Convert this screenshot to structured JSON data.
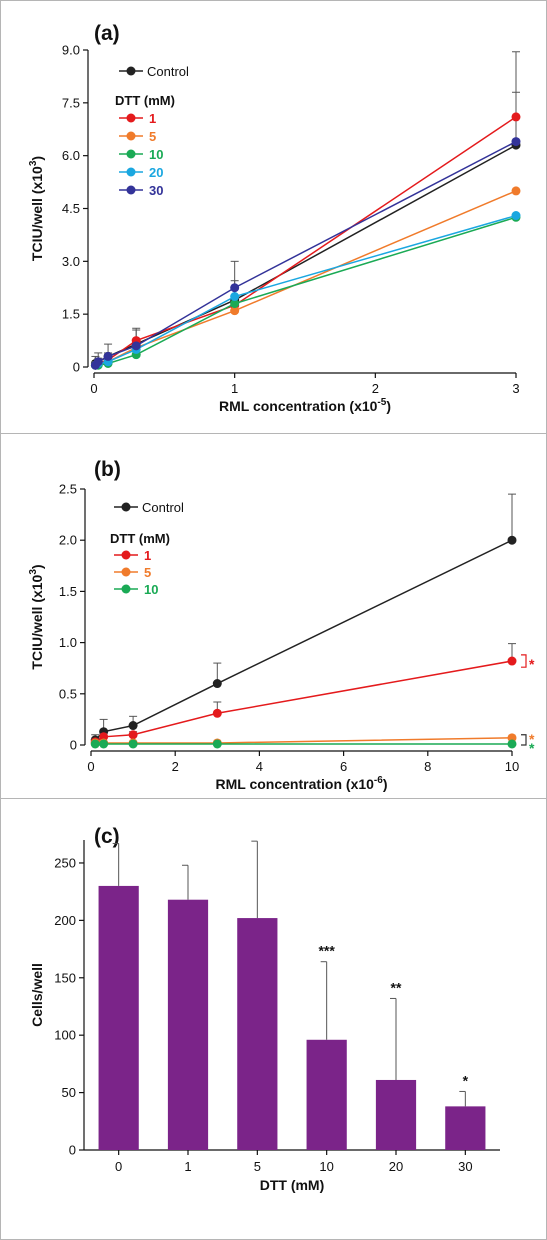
{
  "chart_data": [
    {
      "type": "line",
      "panel_label": "(a)",
      "xlabel": "RML concentration (x10",
      "xlabel_sup": "-5",
      "xlabel_end": ")",
      "ylabel": "TCIU/well (x10",
      "ylabel_sup": "3",
      "ylabel_end": ")",
      "xlim": [
        0,
        3
      ],
      "ylim": [
        0,
        9
      ],
      "xticks": [
        0,
        1,
        2,
        3
      ],
      "xtick_labels": [
        "0",
        "1",
        "2",
        "3"
      ],
      "yticks": [
        0,
        1.5,
        3,
        4.5,
        6,
        7.5,
        9
      ],
      "ytick_labels": [
        "0",
        "1.5",
        "3.0",
        "4.5",
        "6.0",
        "7.5",
        "9.0"
      ],
      "legend_heading": "DTT (mM)",
      "legend_placement": "top-left",
      "x": [
        0.01,
        0.03,
        0.1,
        0.3,
        1,
        3
      ],
      "series": [
        {
          "name": "Control",
          "color": "#222222",
          "label_color": "#111111",
          "values": [
            0.1,
            0.15,
            0.3,
            0.65,
            1.9,
            6.3
          ],
          "err": [
            0.2,
            0.25,
            0.35,
            0.45,
            1.1,
            2.65
          ]
        },
        {
          "name": "1",
          "color": "#e41a1c",
          "label_color": "#e41a1c",
          "values": [
            0.05,
            0.1,
            0.2,
            0.75,
            1.75,
            7.1
          ],
          "err": [
            0.1,
            0.15,
            0.2,
            0.3,
            0.7,
            0.7
          ]
        },
        {
          "name": "5",
          "color": "#f07b2b",
          "label_color": "#f07b2b",
          "values": [
            0.05,
            0.1,
            0.15,
            0.55,
            1.6,
            5.0
          ],
          "err": [
            0,
            0,
            0,
            0,
            0,
            0
          ]
        },
        {
          "name": "10",
          "color": "#1aaa55",
          "label_color": "#1aaa55",
          "values": [
            0.05,
            0.05,
            0.1,
            0.35,
            1.8,
            4.25
          ],
          "err": [
            0,
            0,
            0,
            0,
            0,
            0
          ]
        },
        {
          "name": "20",
          "color": "#1aa7e0",
          "label_color": "#1aa7e0",
          "values": [
            0.05,
            0.1,
            0.15,
            0.5,
            2.0,
            4.3
          ],
          "err": [
            0,
            0,
            0,
            0,
            0,
            0
          ]
        },
        {
          "name": "30",
          "color": "#333399",
          "label_color": "#333399",
          "values": [
            0.05,
            0.15,
            0.3,
            0.6,
            2.25,
            6.4
          ],
          "err": [
            0,
            0,
            0,
            0,
            0,
            0
          ]
        }
      ]
    },
    {
      "type": "line",
      "panel_label": "(b)",
      "xlabel": "RML concentration (x10",
      "xlabel_sup": "-6",
      "xlabel_end": ")",
      "ylabel": "TCIU/well (x10",
      "ylabel_sup": "3",
      "ylabel_end": ")",
      "xlim": [
        0,
        10
      ],
      "ylim": [
        0,
        2.5
      ],
      "xticks": [
        0,
        2,
        4,
        6,
        8,
        10
      ],
      "xtick_labels": [
        "0",
        "2",
        "4",
        "6",
        "8",
        "10"
      ],
      "yticks": [
        0,
        0.5,
        1,
        1.5,
        2,
        2.5
      ],
      "ytick_labels": [
        "0",
        "0.5",
        "1.0",
        "1.5",
        "2.0",
        "2.5"
      ],
      "legend_heading": "DTT (mM)",
      "legend_placement": "top-left",
      "x": [
        0.1,
        0.3,
        1,
        3,
        10
      ],
      "series": [
        {
          "name": "Control",
          "color": "#222222",
          "label_color": "#111111",
          "values": [
            0.05,
            0.13,
            0.19,
            0.6,
            2.0
          ],
          "err": [
            0.05,
            0.12,
            0.09,
            0.2,
            0.45
          ]
        },
        {
          "name": "1",
          "color": "#e41a1c",
          "label_color": "#e41a1c",
          "values": [
            0.03,
            0.08,
            0.1,
            0.31,
            0.82
          ],
          "err": [
            0.03,
            0.03,
            0.03,
            0.11,
            0.17
          ]
        },
        {
          "name": "5",
          "color": "#f07b2b",
          "label_color": "#f07b2b",
          "values": [
            0.02,
            0.02,
            0.02,
            0.02,
            0.07
          ],
          "err": [
            0,
            0,
            0,
            0,
            0
          ]
        },
        {
          "name": "10",
          "color": "#1aaa55",
          "label_color": "#1aaa55",
          "values": [
            0.01,
            0.01,
            0.01,
            0.01,
            0.01
          ],
          "err": [
            0,
            0,
            0,
            0,
            0
          ]
        }
      ],
      "annotations": [
        {
          "text": "*",
          "color": "#e41a1c",
          "y": 0.82,
          "bracket": [
            0.76,
            0.88
          ],
          "bracket_color": "#e41a1c"
        },
        {
          "text": "*",
          "color": "#f07b2b",
          "y": 0.09,
          "bracket": [
            0.0,
            0.1
          ],
          "bracket_color": "#333333"
        },
        {
          "text": "*",
          "color": "#1aaa55",
          "y": 0.0,
          "bracket": null,
          "bracket_color": null
        }
      ]
    },
    {
      "type": "bar",
      "panel_label": "(c)",
      "xlabel": "DTT (mM)",
      "ylabel": "Cells/well",
      "ylim": [
        0,
        270
      ],
      "yticks": [
        0,
        50,
        100,
        150,
        200,
        250
      ],
      "ytick_labels": [
        "0",
        "50",
        "100",
        "150",
        "200",
        "250"
      ],
      "bar_color": "#7b2489",
      "categories": [
        "0",
        "1",
        "5",
        "10",
        "20",
        "30"
      ],
      "values": [
        230,
        218,
        202,
        96,
        61,
        38
      ],
      "err": [
        37,
        30,
        67,
        68,
        71,
        13
      ],
      "significance": [
        "",
        "",
        "",
        "***",
        "**",
        "*"
      ]
    }
  ]
}
